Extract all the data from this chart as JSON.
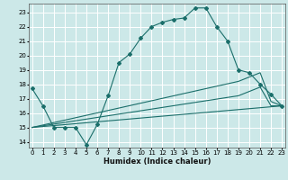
{
  "title": "",
  "xlabel": "Humidex (Indice chaleur)",
  "bg_color": "#cce8e8",
  "grid_color": "#ffffff",
  "line_color": "#1a6e6a",
  "x_ticks": [
    0,
    1,
    2,
    3,
    4,
    5,
    6,
    7,
    8,
    9,
    10,
    11,
    12,
    13,
    14,
    15,
    16,
    17,
    18,
    19,
    20,
    21,
    22,
    23
  ],
  "y_ticks": [
    14,
    15,
    16,
    17,
    18,
    19,
    20,
    21,
    22,
    23
  ],
  "xlim": [
    -0.3,
    23.3
  ],
  "ylim": [
    13.6,
    23.6
  ],
  "line1_x": [
    0,
    1,
    2,
    3,
    4,
    5,
    6,
    7,
    8,
    9,
    10,
    11,
    12,
    13,
    14,
    15,
    16,
    17,
    18,
    19,
    20,
    21,
    22,
    23
  ],
  "line1_y": [
    17.7,
    16.5,
    15.0,
    15.0,
    15.0,
    13.8,
    15.2,
    17.2,
    19.5,
    20.1,
    21.2,
    22.0,
    22.3,
    22.5,
    22.6,
    23.3,
    23.3,
    22.0,
    21.0,
    19.0,
    18.8,
    18.0,
    17.3,
    16.5
  ],
  "line2_x": [
    0,
    23
  ],
  "line2_y": [
    15.0,
    16.5
  ],
  "line3_x": [
    0,
    19,
    20,
    21,
    22,
    23
  ],
  "line3_y": [
    15.0,
    18.2,
    18.5,
    18.8,
    16.8,
    16.5
  ],
  "line4_x": [
    0,
    19,
    20,
    21,
    22,
    23
  ],
  "line4_y": [
    15.0,
    17.2,
    17.5,
    17.8,
    16.5,
    16.5
  ]
}
